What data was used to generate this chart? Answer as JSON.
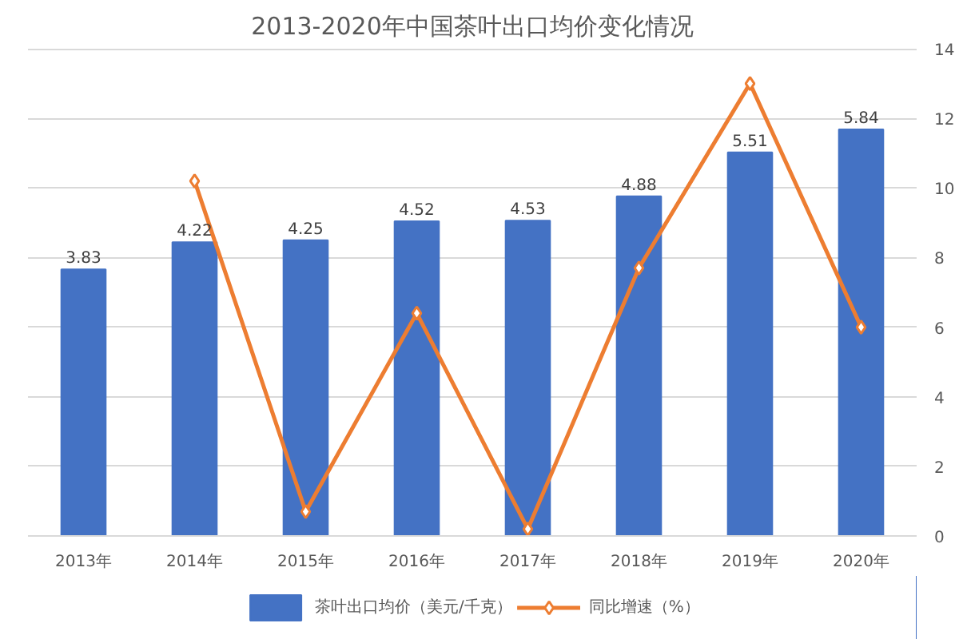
{
  "chart_data": {
    "type": "bar",
    "title": "2013-2020年中国茶叶出口均价变化情况",
    "categories": [
      "2013年",
      "2014年",
      "2015年",
      "2016年",
      "2017年",
      "2018年",
      "2019年",
      "2020年"
    ],
    "series": [
      {
        "name": "茶叶出口均价（美元/千克）",
        "color": "#4472c4",
        "values": [
          3.83,
          4.22,
          4.25,
          4.52,
          4.53,
          4.88,
          5.51,
          5.84
        ],
        "data_labels": true
      },
      {
        "name": "同比增速（%）",
        "type": "line",
        "axis": "y2",
        "color": "#ed7d31",
        "marker": "diamond",
        "values": [
          null,
          10.2,
          0.7,
          6.4,
          0.2,
          7.7,
          13.0,
          6.0
        ]
      }
    ],
    "ylim": [
      0,
      7
    ],
    "yticks": [
      {
        "value": 0,
        "label": null
      },
      {
        "value": 1,
        "label": null
      },
      {
        "value": 2,
        "label": null
      },
      {
        "value": 3,
        "label": null
      },
      {
        "value": 4,
        "label": null
      },
      {
        "value": 5,
        "label": null
      },
      {
        "value": 6,
        "label": null
      },
      {
        "value": 7,
        "label": null
      }
    ],
    "y2lim": [
      0,
      14
    ],
    "y2ticks": [
      0,
      2,
      4,
      6,
      8,
      10,
      12,
      14
    ],
    "grid": "y",
    "legend": "bottom"
  }
}
